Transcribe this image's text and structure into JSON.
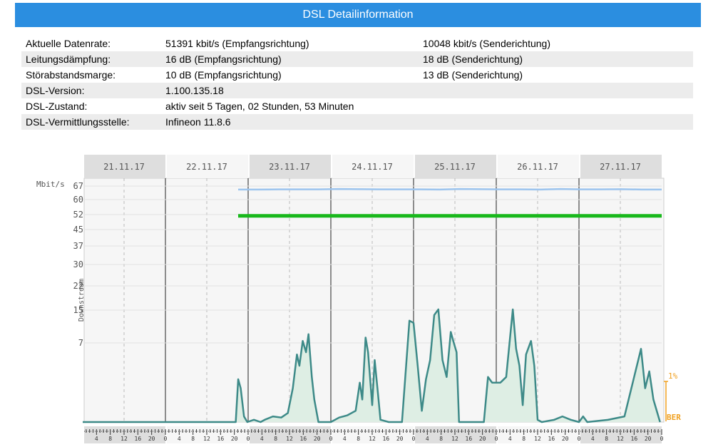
{
  "header": {
    "title": "DSL Detailinformation"
  },
  "info_rows": [
    {
      "label": "Aktuelle Datenrate:",
      "value1": "51391 kbit/s (Empfangsrichtung)",
      "value2": "10048 kbit/s (Senderichtung)"
    },
    {
      "label": "Leitungsdämpfung:",
      "value1": "16 dB (Empfangsrichtung)",
      "value2": "18 dB (Senderichtung)"
    },
    {
      "label": "Störabstandsmarge:",
      "value1": "10 dB (Empfangsrichtung)",
      "value2": "13 dB (Senderichtung)"
    },
    {
      "label": "DSL-Version:",
      "value1": "1.100.135.18",
      "value2": ""
    },
    {
      "label": "DSL-Zustand:",
      "value1": "aktiv seit 5 Tagen, 02 Stunden, 53 Minuten",
      "value2": ""
    },
    {
      "label": "DSL-Vermittlungsstelle:",
      "value1": "Infineon 11.8.6",
      "value2": ""
    }
  ],
  "chart_data": {
    "type": "line",
    "ylabel_unit": "Mbit/s",
    "ylabel": "Downstream",
    "days": [
      "21.11.17",
      "22.11.17",
      "23.11.17",
      "24.11.17",
      "25.11.17",
      "26.11.17",
      "27.11.17"
    ],
    "yticks": [
      67,
      60,
      52,
      45,
      37,
      30,
      22,
      15,
      7
    ],
    "hour_ticks": [
      "4",
      "8",
      "12",
      "16",
      "20",
      "0"
    ],
    "ber_max_label": "1%",
    "ber_label": "BER",
    "colors": {
      "capacity": "#9cc4ee",
      "rate": "#19b81c",
      "errors": "#3d8a88",
      "errors_fill": "#deeee4",
      "ber": "#f0a020"
    },
    "series": [
      {
        "name": "capacity",
        "unit": "Mbit/s",
        "x_start_day": 2.0,
        "values": [
          65.2,
          65.2,
          65.3,
          65.3,
          65.3,
          65.5,
          65.4,
          65.3,
          65.3,
          65.3,
          65.2,
          65.5,
          65.4,
          65.3,
          65.3,
          65.2,
          65.5,
          65.3,
          65.3,
          65.4,
          65.2,
          65.2
        ]
      },
      {
        "name": "rate",
        "unit": "Mbit/s",
        "x_start_day": 2.0,
        "values": [
          51.4,
          51.4
        ]
      },
      {
        "name": "errors",
        "unit": "%",
        "points": [
          [
            0.0,
            0.0
          ],
          [
            1.85,
            0.0
          ],
          [
            1.88,
            0.38
          ],
          [
            1.91,
            0.3
          ],
          [
            1.95,
            0.05
          ],
          [
            1.99,
            0.0
          ],
          [
            2.07,
            0.02
          ],
          [
            2.15,
            0.0
          ],
          [
            2.2,
            0.02
          ],
          [
            2.3,
            0.05
          ],
          [
            2.4,
            0.04
          ],
          [
            2.48,
            0.08
          ],
          [
            2.54,
            0.3
          ],
          [
            2.59,
            0.6
          ],
          [
            2.62,
            0.5
          ],
          [
            2.66,
            0.72
          ],
          [
            2.7,
            0.62
          ],
          [
            2.73,
            0.78
          ],
          [
            2.77,
            0.4
          ],
          [
            2.8,
            0.2
          ],
          [
            2.85,
            0.0
          ],
          [
            3.0,
            0.0
          ],
          [
            3.1,
            0.04
          ],
          [
            3.2,
            0.06
          ],
          [
            3.3,
            0.1
          ],
          [
            3.35,
            0.35
          ],
          [
            3.38,
            0.2
          ],
          [
            3.42,
            0.75
          ],
          [
            3.45,
            0.62
          ],
          [
            3.5,
            0.15
          ],
          [
            3.53,
            0.55
          ],
          [
            3.57,
            0.25
          ],
          [
            3.6,
            0.02
          ],
          [
            3.7,
            0.0
          ],
          [
            3.86,
            0.0
          ],
          [
            3.9,
            0.4
          ],
          [
            3.95,
            0.9
          ],
          [
            4.0,
            0.88
          ],
          [
            4.05,
            0.5
          ],
          [
            4.1,
            0.1
          ],
          [
            4.15,
            0.38
          ],
          [
            4.2,
            0.55
          ],
          [
            4.25,
            0.95
          ],
          [
            4.3,
            1.0
          ],
          [
            4.35,
            0.55
          ],
          [
            4.4,
            0.4
          ],
          [
            4.45,
            0.8
          ],
          [
            4.48,
            0.72
          ],
          [
            4.52,
            0.62
          ],
          [
            4.55,
            0.0
          ],
          [
            4.6,
            0.0
          ],
          [
            4.85,
            0.0
          ],
          [
            4.9,
            0.4
          ],
          [
            4.95,
            0.35
          ],
          [
            5.0,
            0.35
          ],
          [
            5.05,
            0.35
          ],
          [
            5.12,
            0.4
          ],
          [
            5.18,
            0.85
          ],
          [
            5.2,
            1.0
          ],
          [
            5.24,
            0.65
          ],
          [
            5.28,
            0.5
          ],
          [
            5.32,
            0.15
          ],
          [
            5.36,
            0.6
          ],
          [
            5.42,
            0.72
          ],
          [
            5.46,
            0.5
          ],
          [
            5.5,
            0.02
          ],
          [
            5.55,
            0.0
          ],
          [
            5.7,
            0.02
          ],
          [
            5.8,
            0.05
          ],
          [
            5.9,
            0.02
          ],
          [
            6.0,
            0.0
          ],
          [
            6.05,
            0.05
          ],
          [
            6.1,
            0.0
          ],
          [
            6.35,
            0.02
          ],
          [
            6.55,
            0.05
          ],
          [
            6.75,
            0.65
          ],
          [
            6.8,
            0.3
          ],
          [
            6.85,
            0.45
          ],
          [
            6.9,
            0.2
          ],
          [
            6.98,
            0.0
          ]
        ]
      }
    ]
  }
}
